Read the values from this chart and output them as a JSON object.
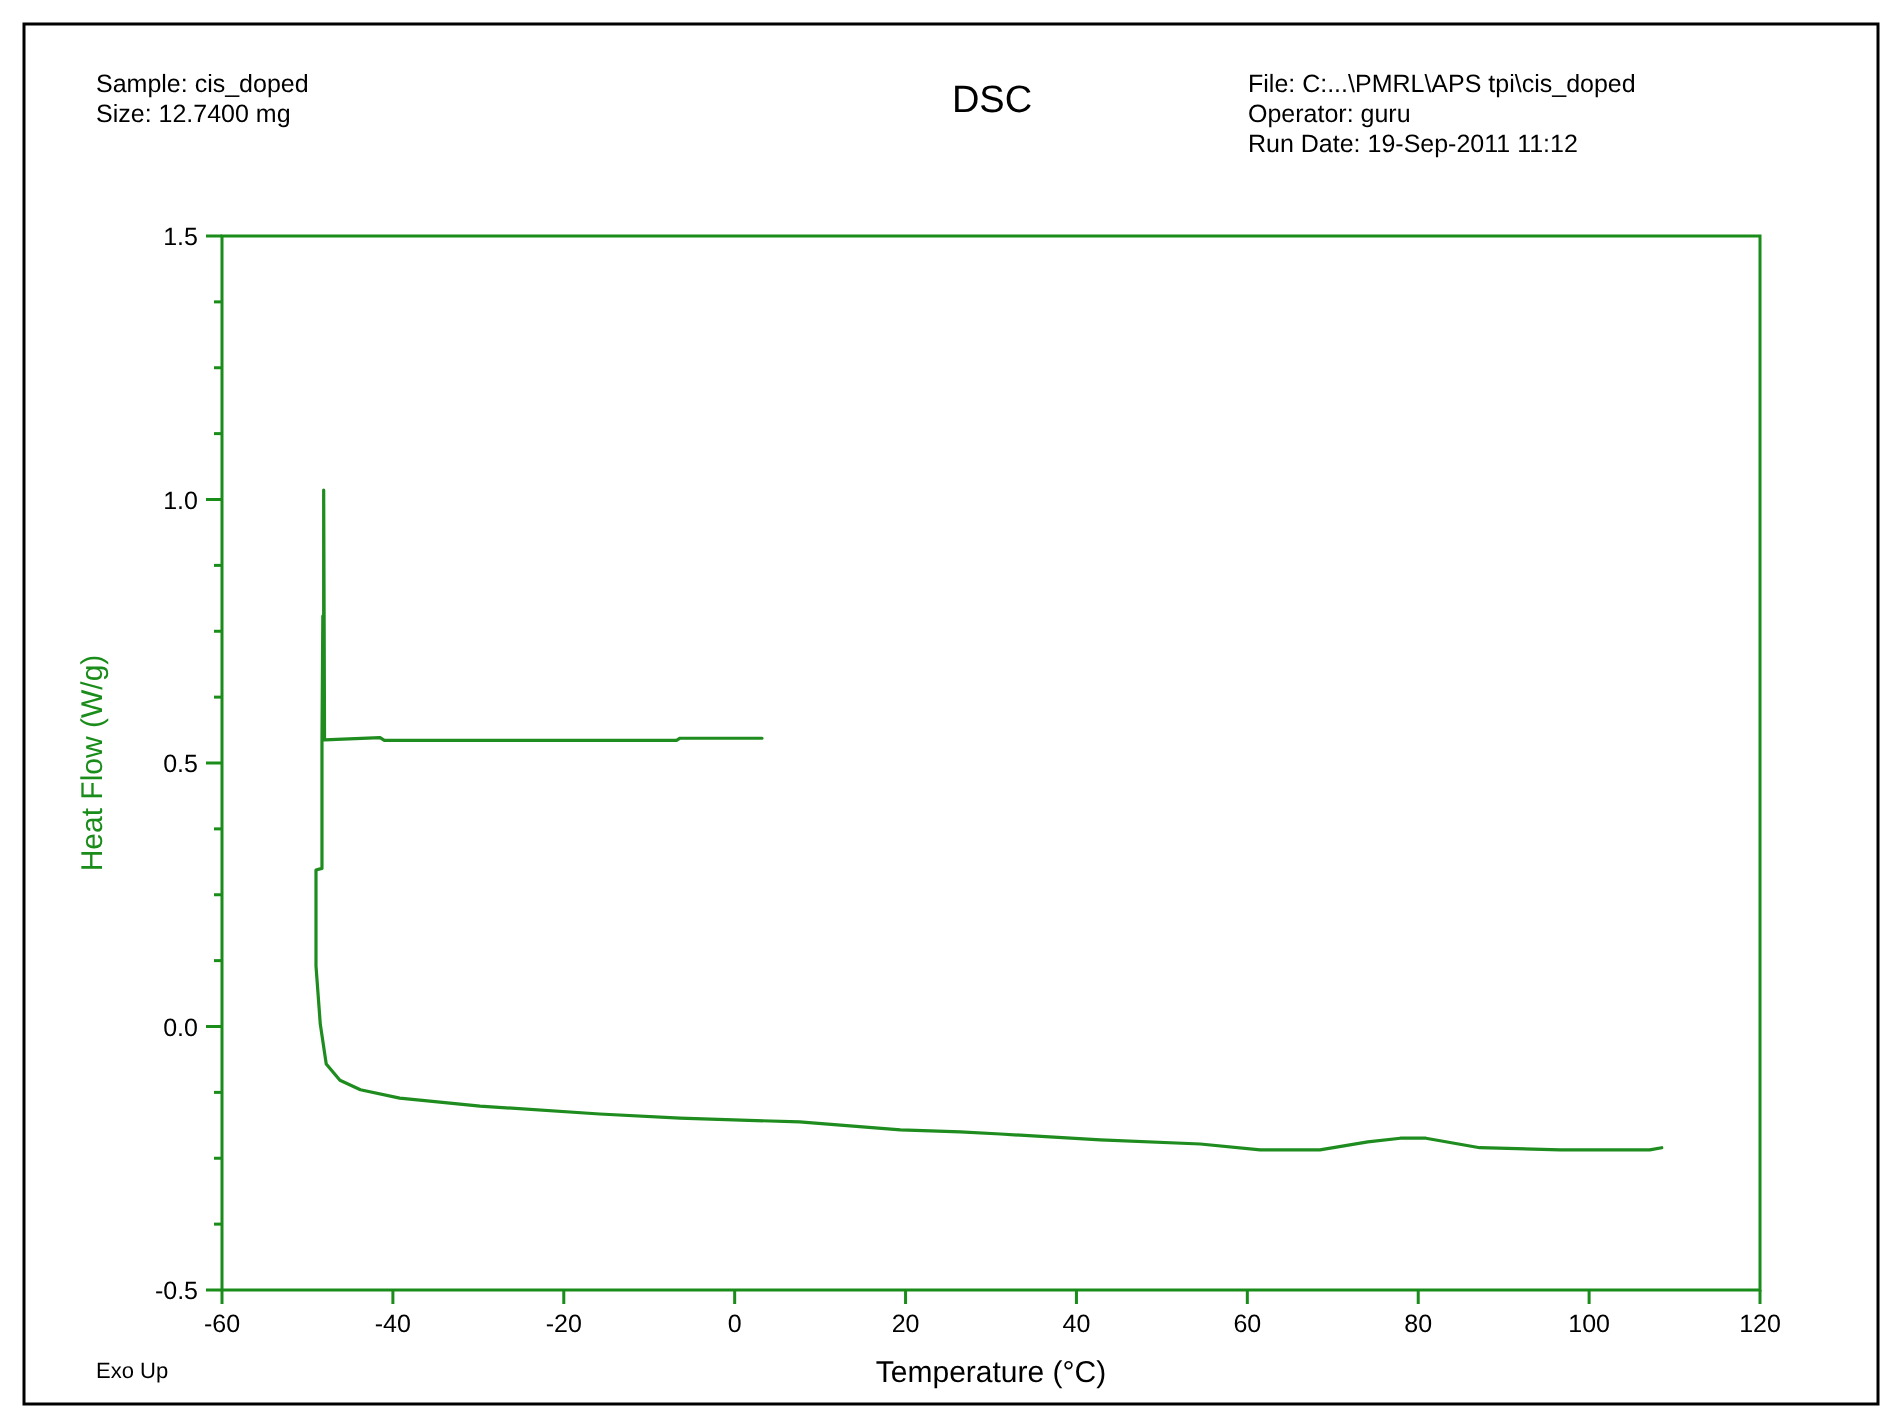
{
  "chart_data": {
    "type": "line",
    "title": "DSC",
    "xlabel": "Temperature (°C)",
    "ylabel": "Heat Flow (W/g)",
    "annotations": [
      "Sample: cis_doped",
      "Size:  12.7400 mg",
      "File: C:...\\PMRL\\APS tpi\\cis_doped",
      "Operator: guru",
      "Run Date: 19-Sep-2011 11:12",
      "Exo Up"
    ],
    "xlim": [
      -60,
      120
    ],
    "xticks": [
      -60,
      -40,
      -20,
      0,
      20,
      40,
      60,
      80,
      100,
      120
    ],
    "ylim": [
      -0.5,
      1.5
    ],
    "yticks": [
      {
        "value": -0.5,
        "label": "-0.5"
      },
      {
        "value": -0.375,
        "label": null
      },
      {
        "value": -0.25,
        "label": null
      },
      {
        "value": -0.125,
        "label": null
      },
      {
        "value": 0,
        "label": "0.0"
      },
      {
        "value": 0.125,
        "label": null
      },
      {
        "value": 0.25,
        "label": null
      },
      {
        "value": 0.375,
        "label": null
      },
      {
        "value": 0.5,
        "label": "0.5"
      },
      {
        "value": 0.625,
        "label": null
      },
      {
        "value": 0.75,
        "label": null
      },
      {
        "value": 0.875,
        "label": null
      },
      {
        "value": 1,
        "label": "1.0"
      },
      {
        "value": 1.125,
        "label": null
      },
      {
        "value": 1.25,
        "label": null
      },
      {
        "value": 1.375,
        "label": null
      },
      {
        "value": 1.5,
        "label": "1.5"
      }
    ],
    "grid": false,
    "marker": "none",
    "line_style": "solid",
    "series": [
      {
        "color": "#1e8c1e",
        "x": [
          3.2,
          2.5,
          -6.4,
          -6.8,
          -41.0,
          -41.5,
          -48.0,
          -48.1,
          -48.1,
          -48.2,
          -48.3,
          -48.3,
          -49.0,
          -49.0,
          -48.5,
          -47.8,
          -46.2,
          -43.8,
          -39.2,
          -29.8,
          -15.8,
          -6.4,
          7.6,
          19.4,
          26.4,
          31.1,
          42.8,
          54.5,
          61.5,
          68.5,
          74.1,
          77.9,
          80.9,
          87.2,
          96.6,
          107.1,
          108.5
        ],
        "values": [
          0.547,
          0.547,
          0.547,
          0.543,
          0.543,
          0.548,
          0.544,
          1.018,
          0.544,
          0.779,
          0.544,
          0.3,
          0.297,
          0.115,
          0.005,
          -0.071,
          -0.102,
          -0.12,
          -0.136,
          -0.151,
          -0.166,
          -0.174,
          -0.181,
          -0.196,
          -0.2,
          -0.204,
          -0.215,
          -0.223,
          -0.234,
          -0.234,
          -0.219,
          -0.212,
          -0.212,
          -0.23,
          -0.234,
          -0.234,
          -0.23
        ]
      }
    ]
  }
}
